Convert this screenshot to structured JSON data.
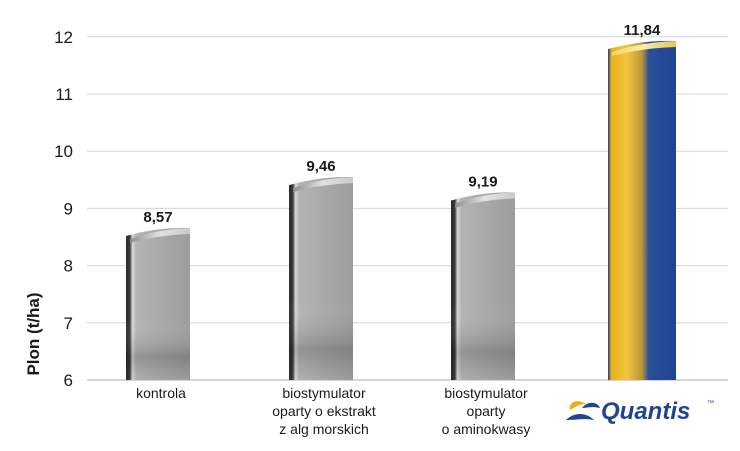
{
  "chart_data": {
    "type": "bar",
    "ylabel": "Plon (t/ha)",
    "yticks": [
      6,
      7,
      8,
      9,
      10,
      11,
      12
    ],
    "ylim": [
      6,
      13
    ],
    "grid": true,
    "categories": [
      [
        "kontrola"
      ],
      [
        "biostymulator",
        "oparty o ekstrakt",
        "z alg morskich"
      ],
      [
        "biostymulator",
        "oparty",
        "o aminokwasy"
      ],
      []
    ],
    "values": [
      8.57,
      9.46,
      9.19,
      11.84
    ],
    "value_labels": [
      "8,57",
      "9,46",
      "9,19",
      "11,84"
    ],
    "highlight": {
      "index": 3,
      "logo_text": "Quantis",
      "logo_mark": "™",
      "colors": {
        "gold": "#e8b21a",
        "blue": "#1f4590"
      }
    },
    "bar_color": "#a9a9a9"
  }
}
